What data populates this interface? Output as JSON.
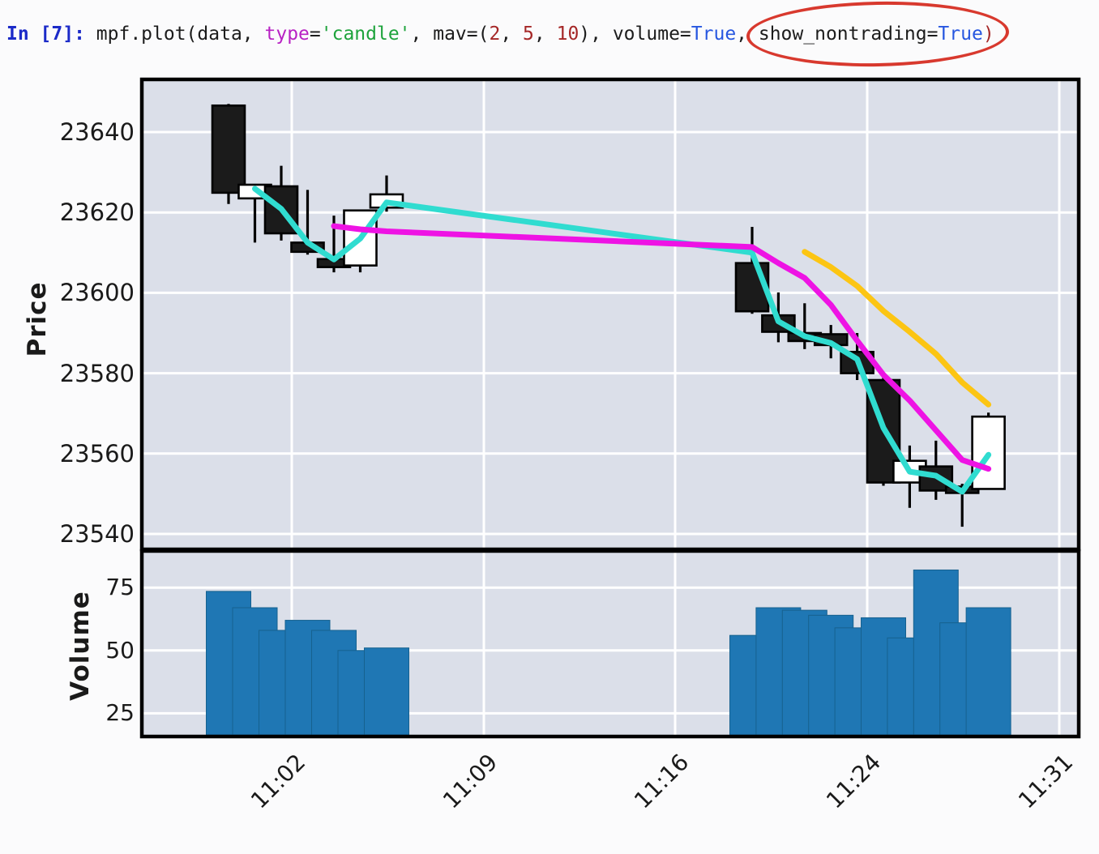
{
  "code_cell": {
    "tokens": [
      {
        "text": "In [7]: ",
        "color": "#1b2ac8",
        "bold": true
      },
      {
        "text": "mpf.plot(data, ",
        "color": "#1c1c1c"
      },
      {
        "text": "type",
        "color": "#b822c4"
      },
      {
        "text": "=",
        "color": "#1c1c1c"
      },
      {
        "text": "'candle'",
        "color": "#1ea33c"
      },
      {
        "text": ", mav=(",
        "color": "#1c1c1c"
      },
      {
        "text": "2",
        "color": "#a52727"
      },
      {
        "text": ", ",
        "color": "#1c1c1c"
      },
      {
        "text": "5",
        "color": "#a52727"
      },
      {
        "text": ", ",
        "color": "#1c1c1c"
      },
      {
        "text": "10",
        "color": "#a52727"
      },
      {
        "text": "), volume=",
        "color": "#1c1c1c"
      },
      {
        "text": "True",
        "color": "#2757e0"
      },
      {
        "text": ", show_nontrading=",
        "color": "#1c1c1c"
      },
      {
        "text": "True",
        "color": "#2757e0"
      },
      {
        "text": ")",
        "color": "#a52727"
      }
    ],
    "annotation": {
      "shape": "ellipse",
      "around_text": "show_nontrading=True)",
      "color": "#d8392e"
    }
  },
  "chart_data": {
    "type": "candlestick",
    "title": "",
    "ylabel": "Price",
    "volume_ylabel": "Volume",
    "legend": "none",
    "grid": true,
    "price_axis": {
      "ticks": [
        23640,
        23620,
        23600,
        23580,
        23560,
        23540
      ],
      "ylim": [
        23536.5,
        23652.8
      ]
    },
    "volume_axis": {
      "ticks": [
        75,
        50,
        25
      ],
      "ylim": [
        17,
        89
      ]
    },
    "x_axis": {
      "tick_labels": [
        "11:02",
        "11:09",
        "11:16",
        "11:24",
        "11:31"
      ]
    },
    "nontrading_gap": {
      "shown": true,
      "after": "11:06",
      "resume": "11:19"
    },
    "candles": [
      {
        "time": "11:00",
        "open": 23646.6,
        "high": 23647.0,
        "low": 23622.1,
        "close": 23624.9,
        "volume": 73.5
      },
      {
        "time": "11:01",
        "open": 23623.5,
        "high": 23627.0,
        "low": 23612.5,
        "close": 23626.9,
        "volume": 67
      },
      {
        "time": "11:02",
        "open": 23626.5,
        "high": 23631.6,
        "low": 23613.0,
        "close": 23614.8,
        "volume": 58
      },
      {
        "time": "11:03",
        "open": 23612.5,
        "high": 23625.6,
        "low": 23609.5,
        "close": 23610.2,
        "volume": 62
      },
      {
        "time": "11:04",
        "open": 23608.4,
        "high": 23619.2,
        "low": 23605.1,
        "close": 23606.4,
        "volume": 58
      },
      {
        "time": "11:05",
        "open": 23606.8,
        "high": 23620.5,
        "low": 23605.1,
        "close": 23620.5,
        "volume": 50
      },
      {
        "time": "11:06",
        "open": 23621.2,
        "high": 23629.2,
        "low": 23620.2,
        "close": 23624.5,
        "volume": 51
      },
      {
        "time": "11:19",
        "open": 23607.4,
        "high": 23616.4,
        "low": 23594.8,
        "close": 23595.4,
        "volume": 56
      },
      {
        "time": "11:20",
        "open": 23594.4,
        "high": 23600.1,
        "low": 23587.7,
        "close": 23590.3,
        "volume": 67
      },
      {
        "time": "11:21",
        "open": 23590.0,
        "high": 23597.4,
        "low": 23586.0,
        "close": 23588.0,
        "volume": 66
      },
      {
        "time": "11:22",
        "open": 23589.7,
        "high": 23592.0,
        "low": 23583.7,
        "close": 23587.0,
        "volume": 64
      },
      {
        "time": "11:23",
        "open": 23585.3,
        "high": 23590.0,
        "low": 23578.3,
        "close": 23580.0,
        "volume": 59
      },
      {
        "time": "11:24",
        "open": 23578.3,
        "high": 23579.5,
        "low": 23552.0,
        "close": 23552.8,
        "volume": 63
      },
      {
        "time": "11:25",
        "open": 23552.8,
        "high": 23562.0,
        "low": 23546.5,
        "close": 23558.2,
        "volume": 55
      },
      {
        "time": "11:26",
        "open": 23556.8,
        "high": 23563.2,
        "low": 23548.5,
        "close": 23550.8,
        "volume": 82
      },
      {
        "time": "11:27",
        "open": 23551.8,
        "high": 23552.5,
        "low": 23541.8,
        "close": 23550.2,
        "volume": 61
      },
      {
        "time": "11:28",
        "open": 23551.2,
        "high": 23570.2,
        "low": 23551.2,
        "close": 23569.2,
        "volume": 67
      }
    ],
    "moving_averages": [
      {
        "period": 2,
        "color": "#30dcd0",
        "values": [
          null,
          23625.9,
          23620.9,
          23612.5,
          23608.3,
          23613.5,
          23622.5,
          23610.0,
          23592.9,
          23589.2,
          23587.5,
          23583.5,
          23566.4,
          23555.5,
          23554.5,
          23550.5,
          23559.7
        ]
      },
      {
        "period": 5,
        "color": "#ee13e4",
        "values": [
          null,
          null,
          null,
          null,
          23616.6,
          23615.8,
          23615.3,
          23611.4,
          23607.4,
          23603.7,
          23597.0,
          23588.1,
          23579.6,
          23573.2,
          23565.8,
          23558.4,
          23556.2
        ]
      },
      {
        "period": 10,
        "color": "#fcc513",
        "values": [
          null,
          null,
          null,
          null,
          null,
          null,
          null,
          null,
          null,
          23610.2,
          23606.4,
          23601.7,
          23595.5,
          23590.3,
          23584.8,
          23577.7,
          23572.2
        ]
      }
    ],
    "colors": {
      "up_candle": "#ffffff",
      "down_candle": "#1b1b1b",
      "candle_edge": "#000000",
      "volume_bar": "#1f77b4",
      "volume_bar_edge": "#16618f",
      "plot_bg": "#dbdfe9",
      "grid": "#ffffff",
      "panel_border": "#000000"
    }
  }
}
